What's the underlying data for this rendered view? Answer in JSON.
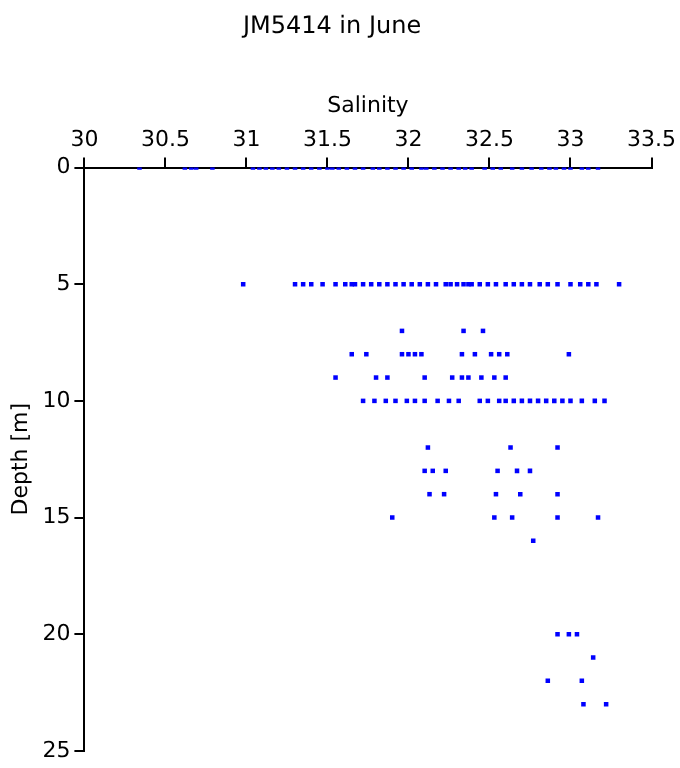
{
  "chart_data": {
    "type": "scatter",
    "title": "JM5414 in June",
    "xlabel": "Salinity",
    "ylabel": "Depth [m]",
    "x": [
      30.34,
      30.62,
      30.66,
      30.69,
      30.79,
      31.04,
      31.08,
      31.12,
      31.16,
      31.2,
      31.25,
      31.3,
      31.35,
      31.4,
      31.45,
      31.5,
      31.53,
      31.57,
      31.62,
      31.67,
      31.72,
      31.78,
      31.82,
      31.87,
      31.92,
      31.97,
      32.02,
      32.08,
      32.11,
      32.16,
      32.21,
      32.26,
      32.31,
      32.35,
      32.39,
      32.47,
      32.52,
      32.57,
      32.64,
      32.7,
      32.76,
      32.82,
      32.87,
      32.91,
      32.96,
      33.0,
      33.07,
      33.11,
      33.17,
      30.98,
      31.3,
      31.35,
      31.4,
      31.47,
      31.55,
      31.61,
      31.65,
      31.67,
      31.72,
      31.77,
      31.82,
      31.87,
      31.92,
      31.97,
      32.02,
      32.07,
      32.12,
      32.17,
      32.23,
      32.26,
      32.3,
      32.34,
      32.37,
      32.39,
      32.44,
      32.49,
      32.54,
      32.6,
      32.65,
      32.7,
      32.75,
      32.81,
      32.86,
      32.92,
      33.0,
      33.06,
      33.11,
      33.16,
      33.3,
      31.96,
      32.34,
      32.46,
      31.65,
      31.74,
      31.96,
      32.0,
      32.04,
      32.08,
      32.33,
      32.41,
      32.51,
      32.56,
      32.61,
      32.99,
      31.55,
      31.8,
      31.87,
      32.1,
      32.27,
      32.33,
      32.37,
      32.45,
      32.53,
      32.6,
      31.72,
      31.79,
      31.86,
      31.92,
      31.99,
      32.04,
      32.1,
      32.18,
      32.25,
      32.31,
      32.44,
      32.49,
      32.56,
      32.6,
      32.65,
      32.7,
      32.75,
      32.8,
      32.85,
      32.9,
      32.95,
      33.0,
      33.07,
      33.15,
      33.21,
      32.12,
      32.63,
      32.92,
      32.1,
      32.15,
      32.23,
      32.55,
      32.67,
      32.75,
      32.13,
      32.22,
      32.54,
      32.69,
      32.92,
      31.9,
      32.53,
      32.64,
      32.92,
      33.17,
      32.77,
      32.92,
      32.99,
      33.04,
      33.14,
      32.86,
      33.07,
      33.08,
      33.22
    ],
    "values": [
      0,
      0,
      0,
      0,
      0,
      0,
      0,
      0,
      0,
      0,
      0,
      0,
      0,
      0,
      0,
      0,
      0,
      0,
      0,
      0,
      0,
      0,
      0,
      0,
      0,
      0,
      0,
      0,
      0,
      0,
      0,
      0,
      0,
      0,
      0,
      0,
      0,
      0,
      0,
      0,
      0,
      0,
      0,
      0,
      0,
      0,
      0,
      0,
      0,
      5,
      5,
      5,
      5,
      5,
      5,
      5,
      5,
      5,
      5,
      5,
      5,
      5,
      5,
      5,
      5,
      5,
      5,
      5,
      5,
      5,
      5,
      5,
      5,
      5,
      5,
      5,
      5,
      5,
      5,
      5,
      5,
      5,
      5,
      5,
      5,
      5,
      5,
      5,
      5,
      7,
      7,
      7,
      8,
      8,
      8,
      8,
      8,
      8,
      8,
      8,
      8,
      8,
      8,
      8,
      9,
      9,
      9,
      9,
      9,
      9,
      9,
      9,
      9,
      9,
      10,
      10,
      10,
      10,
      10,
      10,
      10,
      10,
      10,
      10,
      10,
      10,
      10,
      10,
      10,
      10,
      10,
      10,
      10,
      10,
      10,
      10,
      10,
      10,
      10,
      12,
      12,
      12,
      13,
      13,
      13,
      13,
      13,
      13,
      14,
      14,
      14,
      14,
      14,
      15,
      15,
      15,
      15,
      15,
      16,
      20,
      20,
      20,
      21,
      22,
      22,
      23,
      23
    ],
    "color": "#0000ff",
    "marker": "square",
    "xlim": [
      30,
      33.5
    ],
    "xticks": [
      30,
      30.5,
      31,
      31.5,
      32,
      32.5,
      33,
      33.5
    ],
    "ylim": [
      25,
      0
    ],
    "yticks": [
      0,
      5,
      10,
      15,
      20,
      25
    ],
    "grid": false,
    "legend": false
  }
}
